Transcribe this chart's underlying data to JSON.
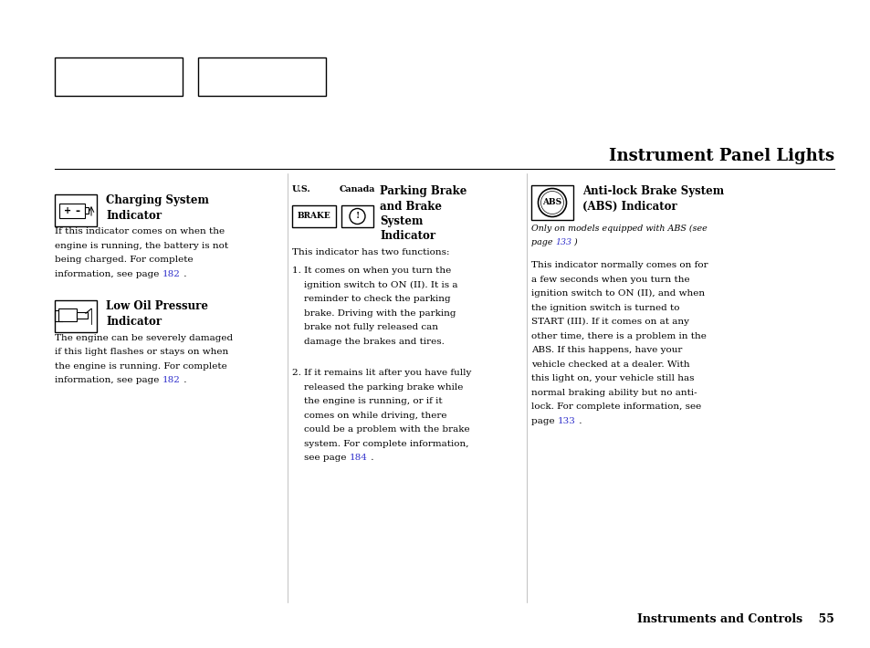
{
  "title": "Instrument Panel Lights",
  "bg_color": "#ffffff",
  "text_color": "#000000",
  "link_color": "#3333cc",
  "title_fontsize": 13,
  "body_fontsize": 7.5,
  "header_fontsize": 8.5,
  "small_fontsize": 6.8,
  "page_footer": "Instruments and Controls    55",
  "col1_heading1_line1": "Charging System",
  "col1_heading1_line2": "Indicator",
  "col1_text1_lines": [
    "If this indicator comes on when the",
    "engine is running, the battery is not",
    "being charged. For complete",
    [
      "information, see page ",
      "182",
      " ."
    ]
  ],
  "col1_heading2_line1": "Low Oil Pressure",
  "col1_heading2_line2": "Indicator",
  "col1_text2_lines": [
    "The engine can be severely damaged",
    "if this light flashes or stays on when",
    "the engine is running. For complete",
    [
      "information, see page ",
      "182",
      " ."
    ]
  ],
  "col2_us_label": "U.S.",
  "col2_canada_label": "Canada",
  "col2_brake_label": "BRAKE",
  "col2_heading_lines": [
    "Parking Brake",
    "and Brake",
    "System",
    "Indicator"
  ],
  "col2_intro": "This indicator has two functions:",
  "col2_item1_lines": [
    "1. It comes on when you turn the",
    "    ignition switch to ON (II). It is a",
    "    reminder to check the parking",
    "    brake. Driving with the parking",
    "    brake not fully released can",
    "    damage the brakes and tires."
  ],
  "col2_item2_lines": [
    "2. If it remains lit after you have fully",
    "    released the parking brake while",
    "    the engine is running, or if it",
    "    comes on while driving, there",
    "    could be a problem with the brake",
    "    system. For complete information,",
    [
      "    see page ",
      "184",
      " ."
    ]
  ],
  "col3_heading_lines": [
    "Anti-lock Brake System",
    "(ABS) Indicator"
  ],
  "col3_italic_lines": [
    "Only on models equipped with ABS (see",
    [
      "page ",
      "133",
      " )"
    ]
  ],
  "col3_body_lines": [
    "This indicator normally comes on for",
    "a few seconds when you turn the",
    "ignition switch to ON (II), and when",
    "the ignition switch is turned to",
    "START (III). If it comes on at any",
    "other time, there is a problem in the",
    "ABS. If this happens, have your",
    "vehicle checked at a dealer. With",
    "this light on, your vehicle still has",
    "normal braking ability but no anti-",
    "lock. For complete information, see",
    [
      "page ",
      "133",
      " ."
    ]
  ]
}
